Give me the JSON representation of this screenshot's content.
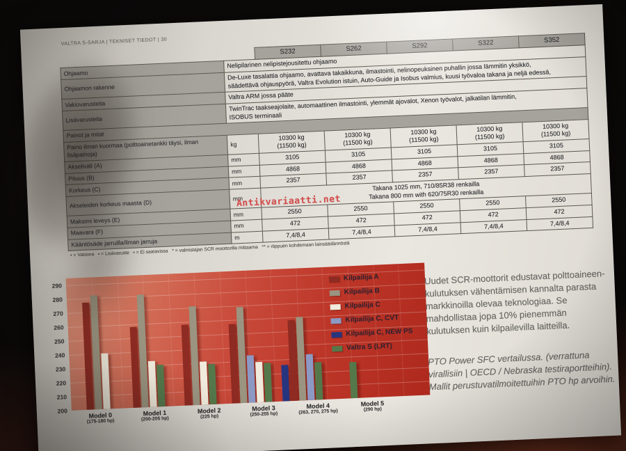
{
  "photo": {
    "watermark": "Antikvariaatti.net",
    "watermark_color": "#d84343"
  },
  "page": {
    "header": "VALTRA S-SARJA | TEKNISET TIEDOT | 30",
    "footnote": "▪ = Vakiona   ▪ = Lisävaruste   ▪ = Ei saatavissa   * = valmistajan SCR moottorilla mittaama   ** = riippuen kohdemaan lainsäädännöstä",
    "right_column": {
      "paragraph1": "Uudet SCR-moottorit edustavat polttoaineen-kulutuksen vähentämisen kannalta parasta markkinoilla olevaa teknologiaa. Se mahdollistaa jopa 10% pienemmän kulutuksen kuin kilpailevilla laitteilla.",
      "paragraph2": "PTO Power SFC vertailussa. (verrattuna virallisiin | OECD / Nebraska testiraportteihin). Mallit perustuvatilmoitettuihin PTO hp arvoihin."
    }
  },
  "spec_table": {
    "models": [
      "S232",
      "S262",
      "S292",
      "S322",
      "S352"
    ],
    "rows": [
      {
        "kind": "text",
        "label": "Ohjaamo",
        "value": "Nelipilarinen nelipistejousitettu ohjaamo"
      },
      {
        "kind": "text",
        "label": "Ohjaamon rakenne",
        "value": "De-Luxe tasalattia ohjaamo, avattava takaikkuna, ilmastointi, nelinopeuksinen puhallin jossa lämmitin yksikkö,\nsäädettävä ohjauspyörä, Valtra Evolution istuin, Auto-Guide ja Isobus valmius, kuusi työvaloa takana ja neljä edessä,"
      },
      {
        "kind": "text",
        "label": "Vakiovarusteita",
        "value": "Valtra ARM jossa pääte"
      },
      {
        "kind": "text",
        "label": "Lisävarusteita",
        "value": "TwinTrac taakseajolaite, automaattinen ilmastointi, ylemmät ajovalot, Xenon työvalot, jalkatilan lämmitin,\nISOBUS terminaali"
      },
      {
        "kind": "section",
        "label": "Painot ja mitat"
      },
      {
        "kind": "values",
        "label": "Paino ilman kuormaa (polttoainetankki täysi, ilman lisäpainoja)",
        "unit": "kg",
        "values": [
          "10300 kg\n(11500 kg)",
          "10300 kg\n(11500 kg)",
          "10300 kg\n(11500 kg)",
          "10300 kg\n(11500 kg)",
          "10300 kg\n(11500 kg)"
        ]
      },
      {
        "kind": "values",
        "label": "Akseliväli (A)",
        "unit": "mm",
        "values": [
          "3105",
          "3105",
          "3105",
          "3105",
          "3105"
        ]
      },
      {
        "kind": "values",
        "label": "Pituus (B)",
        "unit": "mm",
        "values": [
          "4868",
          "4868",
          "4868",
          "4868",
          "4868"
        ]
      },
      {
        "kind": "values",
        "label": "Korkeus (C)",
        "unit": "mm",
        "values": [
          "2357",
          "2357",
          "2357",
          "2357",
          "2357"
        ]
      },
      {
        "kind": "span_values",
        "label": "Akseleiden korkeus maasta (D)",
        "unit": "mm",
        "value": "Takana 1025 mm, 710/85R38 renkailla\nTakana 800 mm with 620/75R30 renkailla"
      },
      {
        "kind": "values",
        "label": "Maksimi leveys (E)",
        "unit": "mm",
        "values": [
          "2550",
          "2550",
          "2550",
          "2550",
          "2550"
        ]
      },
      {
        "kind": "values",
        "label": "Maavara (F)",
        "unit": "mm",
        "values": [
          "472",
          "472",
          "472",
          "472",
          "472"
        ]
      },
      {
        "kind": "values",
        "label": "Kääntösäde jarruilla/ilman jarruja",
        "unit": "m",
        "values": [
          "7,4/8,4",
          "7,4/8,4",
          "7,4/8,4",
          "7,4/8,4",
          "7,4/8,4"
        ]
      }
    ]
  },
  "chart_data": {
    "type": "bar",
    "ylim": [
      200,
      290
    ],
    "yticks": [
      200,
      210,
      220,
      230,
      240,
      250,
      260,
      270,
      280,
      290
    ],
    "grid": true,
    "legend_position": "inside-right",
    "panel_colors": {
      "top_left": "#dc9078",
      "bottom_right": "#ae291d"
    },
    "categories": [
      "Model 0",
      "Model 1",
      "Model 2",
      "Model 3",
      "Model 4",
      "Model 5"
    ],
    "category_sublabels": [
      "(175-180 hp)",
      "(200-205 hp)",
      "(225 hp)",
      "(250-255 hp)",
      "(263, 270, 275 hp)",
      "(290 hp)"
    ],
    "series": [
      {
        "name": "Kilpailija A",
        "color": "#8e2b22",
        "values": [
          277,
          258,
          258,
          257,
          258,
          null
        ]
      },
      {
        "name": "Kilpailija B",
        "color": "#9a9480",
        "values": [
          282,
          281,
          271,
          269,
          260,
          null
        ]
      },
      {
        "name": "Kilpailija C",
        "color": "#f0ebdc",
        "values": [
          240,
          233,
          231,
          229,
          null,
          null
        ]
      },
      {
        "name": "Kilpailija C, CVT",
        "color": "#8c99c4",
        "values": [
          null,
          null,
          null,
          234,
          233,
          null
        ]
      },
      {
        "name": "Kilpailija C, NEW PS",
        "color": "#27357f",
        "values": [
          null,
          null,
          null,
          null,
          226,
          null
        ]
      },
      {
        "name": "Valtra S (LRT)",
        "color": "#55784b",
        "values": [
          null,
          230,
          229,
          228,
          227,
          226
        ]
      }
    ],
    "group_bar_order": [
      [
        0,
        1,
        2
      ],
      [
        0,
        1,
        2,
        5
      ],
      [
        0,
        1,
        2,
        5
      ],
      [
        0,
        1,
        3,
        2,
        5
      ],
      [
        4,
        0,
        1,
        3,
        5
      ],
      [
        5
      ]
    ]
  }
}
